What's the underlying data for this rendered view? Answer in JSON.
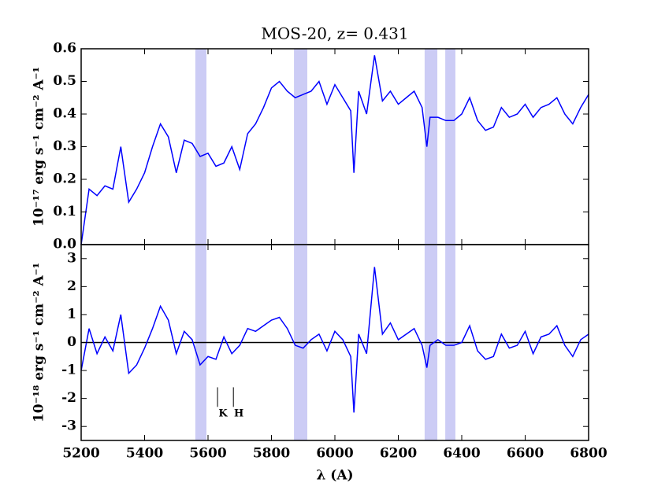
{
  "chart_data": [
    {
      "type": "line",
      "title": "MOS-20, z= 0.431",
      "ylabel": "10⁻¹⁷ erg s⁻¹ cm⁻² A⁻¹",
      "xlim": [
        5200,
        6800
      ],
      "ylim": [
        0,
        0.6
      ],
      "yticks": [
        {
          "value": 0,
          "label": "0.0"
        },
        0.1,
        0.2,
        0.3,
        0.4,
        0.5,
        0.6
      ],
      "shaded_regions": [
        [
          5560,
          5595
        ],
        [
          5871,
          5913
        ],
        [
          6283,
          6323
        ],
        [
          6348,
          6380
        ]
      ],
      "shade_color": "#ccccf5",
      "x": [
        5200,
        5225,
        5250,
        5275,
        5300,
        5325,
        5350,
        5375,
        5400,
        5425,
        5450,
        5475,
        5500,
        5525,
        5550,
        5575,
        5600,
        5625,
        5650,
        5675,
        5700,
        5725,
        5750,
        5775,
        5800,
        5825,
        5850,
        5875,
        5900,
        5925,
        5950,
        5975,
        6000,
        6025,
        6050,
        6060,
        6075,
        6100,
        6125,
        6150,
        6175,
        6200,
        6225,
        6250,
        6275,
        6290,
        6300,
        6325,
        6350,
        6375,
        6400,
        6425,
        6450,
        6475,
        6500,
        6525,
        6550,
        6575,
        6600,
        6625,
        6650,
        6675,
        6700,
        6725,
        6750,
        6775,
        6800
      ],
      "series": [
        {
          "color": "#0000ff",
          "values": [
            0.0,
            0.17,
            0.15,
            0.18,
            0.17,
            0.3,
            0.13,
            0.17,
            0.22,
            0.3,
            0.37,
            0.33,
            0.22,
            0.32,
            0.31,
            0.27,
            0.28,
            0.24,
            0.25,
            0.3,
            0.23,
            0.34,
            0.37,
            0.42,
            0.48,
            0.5,
            0.47,
            0.45,
            0.46,
            0.47,
            0.5,
            0.43,
            0.49,
            0.45,
            0.41,
            0.22,
            0.47,
            0.4,
            0.58,
            0.44,
            0.47,
            0.43,
            0.45,
            0.47,
            0.42,
            0.3,
            0.39,
            0.39,
            0.38,
            0.38,
            0.4,
            0.45,
            0.38,
            0.35,
            0.36,
            0.42,
            0.39,
            0.4,
            0.43,
            0.39,
            0.42,
            0.43,
            0.45,
            0.4,
            0.37,
            0.42,
            0.46
          ]
        }
      ]
    },
    {
      "type": "line",
      "xlabel": "λ (A)",
      "ylabel": "10⁻¹⁸ erg s⁻¹ cm⁻² A⁻¹",
      "xlim": [
        5200,
        6800
      ],
      "ylim": [
        -3.5,
        3.5
      ],
      "xticks": [
        5200,
        5400,
        5600,
        5800,
        6000,
        6200,
        6400,
        6600,
        6800
      ],
      "yticks": [
        -3,
        -2,
        -1,
        0,
        1,
        2,
        3
      ],
      "hline": 0,
      "shaded_regions": [
        [
          5560,
          5595
        ],
        [
          5871,
          5913
        ],
        [
          6283,
          6323
        ],
        [
          6348,
          6380
        ]
      ],
      "shade_color": "#ccccf5",
      "annotations": [
        {
          "text": "K",
          "x": 5630
        },
        {
          "text": "H",
          "x": 5680
        }
      ],
      "x": [
        5200,
        5225,
        5250,
        5275,
        5300,
        5325,
        5350,
        5375,
        5400,
        5425,
        5450,
        5475,
        5500,
        5525,
        5550,
        5575,
        5600,
        5625,
        5650,
        5675,
        5700,
        5725,
        5750,
        5775,
        5800,
        5825,
        5850,
        5875,
        5900,
        5925,
        5950,
        5975,
        6000,
        6025,
        6050,
        6060,
        6075,
        6100,
        6125,
        6150,
        6175,
        6200,
        6225,
        6250,
        6275,
        6290,
        6300,
        6325,
        6350,
        6375,
        6400,
        6425,
        6450,
        6475,
        6500,
        6525,
        6550,
        6575,
        6600,
        6625,
        6650,
        6675,
        6700,
        6725,
        6750,
        6775,
        6800
      ],
      "series": [
        {
          "color": "#0000ff",
          "values": [
            -1.0,
            0.5,
            -0.4,
            0.2,
            -0.3,
            1.0,
            -1.1,
            -0.8,
            -0.2,
            0.5,
            1.3,
            0.8,
            -0.4,
            0.4,
            0.1,
            -0.8,
            -0.5,
            -0.6,
            0.2,
            -0.4,
            -0.1,
            0.5,
            0.4,
            0.6,
            0.8,
            0.9,
            0.5,
            -0.1,
            -0.2,
            0.1,
            0.3,
            -0.3,
            0.4,
            0.1,
            -0.5,
            -2.5,
            0.3,
            -0.4,
            2.7,
            0.3,
            0.7,
            0.1,
            0.3,
            0.5,
            -0.1,
            -0.9,
            -0.1,
            0.1,
            -0.1,
            -0.1,
            0.0,
            0.6,
            -0.3,
            -0.6,
            -0.5,
            0.3,
            -0.2,
            -0.1,
            0.4,
            -0.4,
            0.2,
            0.3,
            0.6,
            -0.1,
            -0.5,
            0.1,
            0.3
          ]
        }
      ]
    }
  ]
}
